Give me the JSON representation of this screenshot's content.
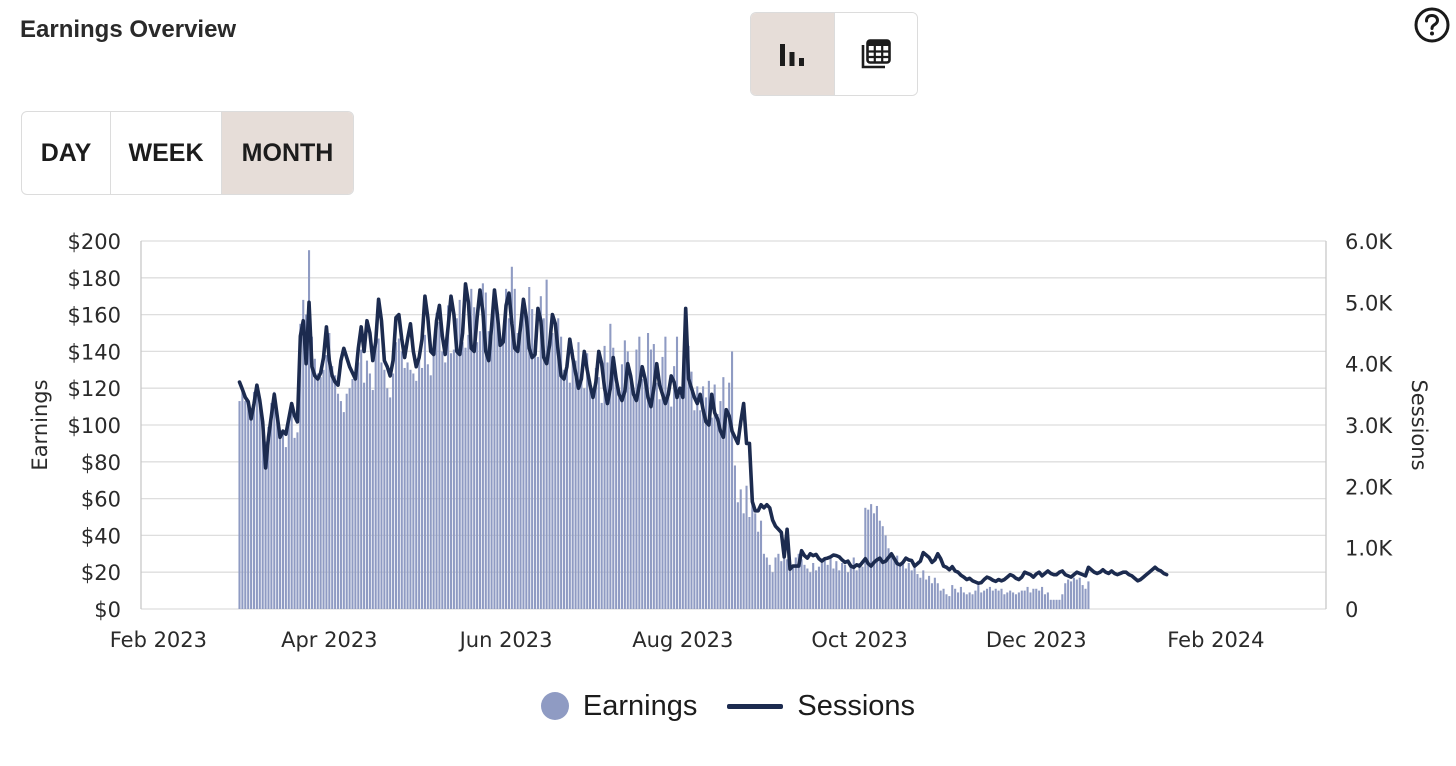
{
  "header": {
    "title": "Earnings Overview"
  },
  "view_toggle": {
    "options": [
      "bar-chart-icon",
      "table-icon"
    ],
    "active": "bar-chart-icon"
  },
  "range": {
    "options": [
      "DAY",
      "WEEK",
      "MONTH"
    ],
    "active": "MONTH"
  },
  "colors": {
    "bars": "#8f9bc3",
    "line": "#1c2b4f",
    "active_bg": "#e6ddd8",
    "grid": "#dedede"
  },
  "chart_data": {
    "type": "bar",
    "xlabel": "",
    "y_left": {
      "label": "Earnings",
      "min": 0,
      "max": 200,
      "ticks": [
        "$0",
        "$20",
        "$40",
        "$60",
        "$80",
        "$100",
        "$120",
        "$140",
        "$160",
        "$180",
        "$200"
      ]
    },
    "y_right": {
      "label": "Sessions",
      "min": 0,
      "max": 6000,
      "ticks": [
        "0",
        "1.0K",
        "2.0K",
        "3.0K",
        "4.0K",
        "5.0K",
        "6.0K"
      ]
    },
    "x_ticks": [
      "Feb 2023",
      "Apr 2023",
      "Jun 2023",
      "Aug 2023",
      "Oct 2023",
      "Dec 2023",
      "Feb 2024"
    ],
    "x_range": [
      "2023-01-26",
      "2024-03-10"
    ],
    "grid": true,
    "legend_position": "bottom-center",
    "series": [
      {
        "name": "Earnings",
        "kind": "bar",
        "axis": "left",
        "start_date": "2023-03-01",
        "frequency": "daily",
        "values": [
          113,
          119,
          113,
          111,
          105,
          118,
          120,
          114,
          103,
          91,
          99,
          112,
          118,
          104,
          93,
          96,
          88,
          105,
          110,
          93,
          96,
          155,
          168,
          160,
          195,
          148,
          136,
          128,
          126,
          130,
          138,
          150,
          132,
          127,
          117,
          113,
          107,
          117,
          120,
          125,
          127,
          134,
          141,
          123,
          135,
          128,
          119,
          150,
          147,
          134,
          130,
          120,
          115,
          128,
          145,
          147,
          140,
          131,
          134,
          130,
          128,
          124,
          136,
          131,
          149,
          133,
          127,
          141,
          161,
          156,
          140,
          134,
          165,
          139,
          141,
          158,
          168,
          145,
          142,
          149,
          174,
          164,
          145,
          151,
          177,
          172,
          151,
          148,
          174,
          163,
          144,
          150,
          174,
          158,
          186,
          174,
          150,
          150,
          165,
          161,
          175,
          163,
          146,
          137,
          170,
          158,
          179,
          144,
          150,
          154,
          158,
          148,
          130,
          132,
          123,
          141,
          135,
          145,
          125,
          120,
          139,
          124,
          118,
          131,
          126,
          112,
          143,
          134,
          155,
          142,
          122,
          115,
          133,
          146,
          140,
          127,
          120,
          141,
          148,
          125,
          123,
          150,
          141,
          144,
          123,
          114,
          137,
          148,
          118,
          110,
          132,
          148,
          116,
          119,
          137,
          143,
          129,
          108,
          121,
          108,
          121,
          115,
          124,
          104,
          122,
          106,
          113,
          126,
          103,
          123,
          140,
          78,
          58,
          65,
          52,
          67,
          50,
          60,
          52,
          42,
          48,
          30,
          28,
          24,
          20,
          28,
          30,
          26,
          30,
          27,
          25,
          24,
          28,
          30,
          27,
          24,
          22,
          20,
          25,
          21,
          23,
          25,
          28,
          24,
          28,
          22,
          26,
          21,
          25,
          24,
          20,
          24,
          28,
          21,
          25,
          23,
          55,
          54,
          57,
          52,
          56,
          48,
          45,
          40,
          33,
          30,
          27,
          29,
          24,
          26,
          22,
          25,
          21,
          23,
          19,
          17,
          21,
          16,
          18,
          14,
          17,
          14,
          10,
          11,
          8,
          7,
          13,
          11,
          9,
          12,
          9,
          8,
          9,
          8,
          10,
          13,
          9,
          10,
          11,
          12,
          10,
          11,
          10,
          11,
          8,
          9,
          10,
          9,
          8,
          9,
          10,
          10,
          12,
          9,
          11,
          11,
          10,
          12,
          8,
          9,
          5,
          5,
          5,
          5,
          8,
          14,
          16,
          15,
          17,
          16,
          17,
          13,
          11,
          15
        ]
      },
      {
        "name": "Sessions",
        "kind": "line",
        "axis": "right",
        "start_date": "2023-03-01",
        "frequency": "daily",
        "values": [
          3700,
          3580,
          3450,
          3380,
          3100,
          3350,
          3650,
          3400,
          3050,
          2300,
          2800,
          3150,
          3500,
          3150,
          2800,
          2900,
          2850,
          3100,
          3350,
          3150,
          3050,
          4450,
          4700,
          4000,
          5000,
          3950,
          3800,
          3750,
          3850,
          4100,
          4600,
          4050,
          3800,
          3700,
          3650,
          4050,
          4250,
          4100,
          3950,
          3850,
          3750,
          4250,
          4600,
          4200,
          4700,
          4500,
          4050,
          4350,
          5050,
          4700,
          4050,
          3950,
          3800,
          4050,
          4750,
          4800,
          4400,
          4100,
          4400,
          4650,
          4200,
          3950,
          4100,
          4400,
          5100,
          4750,
          4200,
          4150,
          4700,
          4950,
          4450,
          4150,
          4600,
          5100,
          4800,
          4200,
          4150,
          4500,
          5300,
          5000,
          4250,
          4200,
          4750,
          5200,
          4850,
          4200,
          4050,
          4600,
          5200,
          4800,
          4300,
          4350,
          4950,
          5150,
          4650,
          4250,
          4200,
          4600,
          5050,
          4750,
          4250,
          4100,
          4150,
          4900,
          4700,
          4100,
          4000,
          4300,
          4800,
          4650,
          4200,
          3800,
          3750,
          3950,
          4400,
          4100,
          3850,
          3600,
          3750,
          4200,
          3900,
          3650,
          3450,
          3700,
          4200,
          4000,
          3600,
          3350,
          3600,
          4100,
          3750,
          3500,
          3400,
          3550,
          4000,
          3800,
          3500,
          3400,
          3650,
          3950,
          3750,
          3450,
          3300,
          3600,
          4000,
          3650,
          3500,
          3350,
          3500,
          3800,
          3700,
          3450,
          3600,
          3450,
          4900,
          3750,
          3600,
          3450,
          3350,
          3500,
          3250,
          3050,
          3000,
          3500,
          3200,
          3100,
          2900,
          2800,
          3250,
          3150,
          2900,
          2800,
          2700,
          3050,
          3350,
          2700,
          2700,
          1750,
          1600,
          1600,
          1700,
          1650,
          1700,
          1650,
          1450,
          1350,
          1300,
          1250,
          850,
          1300,
          650,
          700,
          700,
          700,
          950,
          870,
          830,
          900,
          870,
          890,
          820,
          780,
          820,
          830,
          850,
          880,
          870,
          850,
          800,
          760,
          780,
          700,
          680,
          720,
          700,
          760,
          820,
          740,
          700,
          760,
          800,
          830,
          760,
          780,
          840,
          900,
          820,
          740,
          720,
          760,
          830,
          800,
          790,
          700,
          740,
          780,
          920,
          880,
          840,
          760,
          800,
          900,
          820,
          700,
          680,
          640,
          690,
          620,
          600,
          550,
          520,
          480,
          500,
          460,
          440,
          420,
          430,
          480,
          520,
          500,
          470,
          450,
          480,
          460,
          480,
          520,
          560,
          540,
          500,
          480,
          520,
          600,
          580,
          560,
          520,
          570,
          600,
          540,
          580,
          620,
          580,
          560,
          560,
          600,
          620,
          560,
          540,
          520,
          560,
          600,
          580,
          560,
          540,
          680,
          640,
          600,
          580,
          600,
          640,
          600,
          580,
          620,
          580,
          560,
          580,
          600,
          600,
          560,
          540,
          500,
          460,
          480,
          520,
          560,
          600,
          640,
          680,
          640,
          620,
          580,
          560
        ]
      }
    ]
  }
}
